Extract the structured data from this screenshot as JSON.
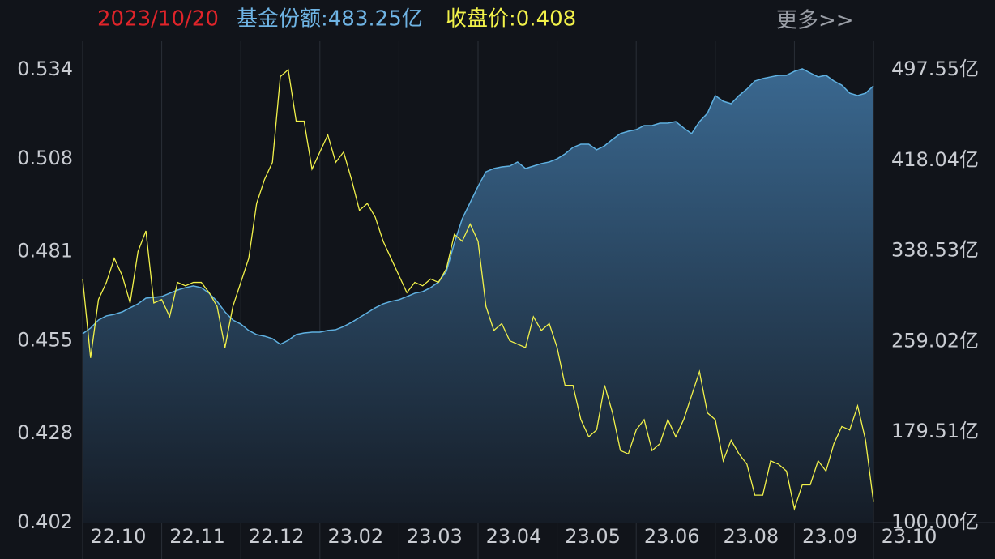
{
  "header": {
    "date": "2023/10/20",
    "share_label": "基金份额:483.25亿",
    "price_label": "收盘价:0.408",
    "more": "更多>>"
  },
  "chart_data": {
    "type": "line",
    "categories": [
      "22.10",
      null,
      null,
      null,
      null,
      null,
      null,
      null,
      null,
      null,
      "22.11",
      null,
      null,
      null,
      null,
      null,
      null,
      null,
      null,
      null,
      "22.12",
      null,
      null,
      null,
      null,
      null,
      null,
      null,
      null,
      null,
      "23.02",
      null,
      null,
      null,
      null,
      null,
      null,
      null,
      null,
      null,
      "23.03",
      null,
      null,
      null,
      null,
      null,
      null,
      null,
      null,
      null,
      "23.04",
      null,
      null,
      null,
      null,
      null,
      null,
      null,
      null,
      null,
      "23.05",
      null,
      null,
      null,
      null,
      null,
      null,
      null,
      null,
      null,
      "23.06",
      null,
      null,
      null,
      null,
      null,
      null,
      null,
      null,
      null,
      "23.08",
      null,
      null,
      null,
      null,
      null,
      null,
      null,
      null,
      null,
      "23.09",
      null,
      null,
      null,
      null,
      null,
      null,
      null,
      null,
      null,
      "23.10"
    ],
    "ylim": [
      0.402,
      0.534
    ],
    "yticks": [
      0.534,
      0.508,
      0.481,
      0.455,
      0.428,
      0.402
    ],
    "y2lim": [
      100,
      497.55
    ],
    "y2ticks": [
      {
        "value": 497.55,
        "label": "497.55亿"
      },
      {
        "value": 418.04,
        "label": "418.04亿"
      },
      {
        "value": 338.53,
        "label": "338.53亿"
      },
      {
        "value": 259.02,
        "label": "259.02亿"
      },
      {
        "value": 179.51,
        "label": "179.51亿"
      },
      {
        "value": 100,
        "label": "100.00亿"
      }
    ],
    "series": [
      {
        "color": "#5fb0e0",
        "axis": "y2",
        "area": true,
        "values": [
          265.7,
          270.7,
          277.8,
          281.4,
          282.8,
          284.9,
          288.5,
          292.0,
          297.0,
          297.7,
          298.4,
          301.3,
          304.1,
          306.2,
          307.7,
          306.2,
          301.3,
          294.2,
          284.9,
          277.8,
          274.2,
          268.6,
          265.0,
          263.6,
          261.4,
          256.5,
          260.0,
          265.0,
          266.4,
          267.1,
          267.1,
          268.6,
          269.3,
          272.1,
          275.7,
          279.9,
          284.2,
          288.5,
          292.0,
          294.2,
          295.6,
          298.4,
          301.3,
          302.7,
          306.2,
          311.2,
          320.5,
          345.4,
          366.7,
          380.9,
          395.1,
          407.9,
          410.8,
          412.2,
          412.9,
          416.5,
          410.8,
          412.9,
          415.1,
          416.5,
          419.3,
          423.6,
          429.3,
          432.1,
          432.1,
          427.2,
          430.7,
          436.4,
          441.4,
          443.5,
          444.9,
          448.5,
          448.5,
          450.6,
          450.6,
          452.0,
          446.4,
          441.4,
          452.0,
          459.2,
          474.8,
          469.8,
          467.7,
          474.8,
          480.5,
          487.6,
          489.7,
          491.2,
          492.6,
          492.6,
          496.1,
          498.3,
          494.7,
          491.2,
          492.6,
          487.6,
          484.0,
          476.9,
          474.8,
          476.9,
          483.25
        ]
      },
      {
        "color": "#f2f24a",
        "values": [
          0.473,
          0.45,
          0.467,
          0.472,
          0.479,
          0.474,
          0.466,
          0.481,
          0.487,
          0.466,
          0.467,
          0.462,
          0.472,
          0.471,
          0.472,
          0.472,
          0.469,
          0.465,
          0.453,
          0.465,
          0.472,
          0.479,
          0.495,
          0.502,
          0.507,
          0.532,
          0.534,
          0.519,
          0.519,
          0.505,
          0.51,
          0.515,
          0.507,
          0.51,
          0.502,
          0.493,
          0.495,
          0.491,
          0.484,
          0.479,
          0.474,
          0.469,
          0.472,
          0.471,
          0.473,
          0.472,
          0.476,
          0.486,
          0.484,
          0.489,
          0.484,
          0.465,
          0.458,
          0.46,
          0.455,
          0.454,
          0.453,
          0.462,
          0.458,
          0.46,
          0.453,
          0.442,
          0.442,
          0.432,
          0.427,
          0.429,
          0.442,
          0.434,
          0.423,
          0.422,
          0.429,
          0.432,
          0.423,
          0.425,
          0.432,
          0.427,
          0.432,
          0.439,
          0.446,
          0.434,
          0.432,
          0.42,
          0.426,
          0.422,
          0.419,
          0.41,
          0.41,
          0.42,
          0.419,
          0.417,
          0.406,
          0.413,
          0.413,
          0.42,
          0.417,
          0.425,
          0.43,
          0.429,
          0.436,
          0.426,
          0.408
        ]
      }
    ]
  }
}
